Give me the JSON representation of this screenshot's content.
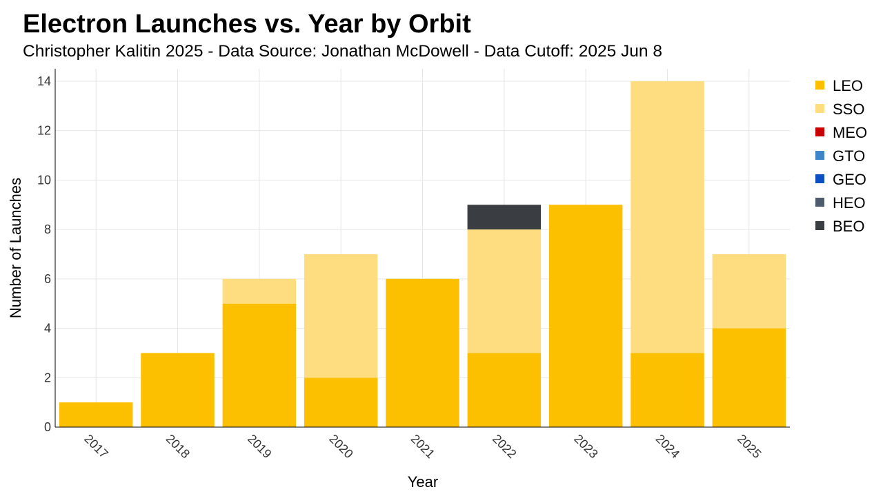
{
  "title": "Electron Launches vs. Year by Orbit",
  "subtitle": "Christopher Kalitin 2025 - Data Source: Jonathan McDowell - Data Cutoff: 2025 Jun 8",
  "colors": {
    "grid": "#e6e6e6",
    "axis": "#000000"
  },
  "chart_data": {
    "type": "bar",
    "stacked": true,
    "title": "Electron Launches vs. Year by Orbit",
    "subtitle": "Christopher Kalitin 2025 - Data Source: Jonathan McDowell - Data Cutoff: 2025 Jun 8",
    "xlabel": "Year",
    "ylabel": "Number of Launches",
    "categories": [
      "2017",
      "2018",
      "2019",
      "2020",
      "2021",
      "2022",
      "2023",
      "2024",
      "2025"
    ],
    "ylim": [
      0,
      14.5
    ],
    "yticks": [
      0,
      2,
      4,
      6,
      8,
      10,
      12,
      14
    ],
    "grid": true,
    "legend_position": "right",
    "series": [
      {
        "name": "LEO",
        "color": "#fdc000",
        "values": [
          1,
          3,
          5,
          2,
          6,
          3,
          9,
          3,
          4
        ]
      },
      {
        "name": "SSO",
        "color": "#fedd81",
        "values": [
          0,
          0,
          1,
          5,
          0,
          5,
          0,
          11,
          3
        ]
      },
      {
        "name": "MEO",
        "color": "#c90000",
        "values": [
          0,
          0,
          0,
          0,
          0,
          0,
          0,
          0,
          0
        ]
      },
      {
        "name": "GTO",
        "color": "#3f86c8",
        "values": [
          0,
          0,
          0,
          0,
          0,
          0,
          0,
          0,
          0
        ]
      },
      {
        "name": "GEO",
        "color": "#0b4fc2",
        "values": [
          0,
          0,
          0,
          0,
          0,
          0,
          0,
          0,
          0
        ]
      },
      {
        "name": "HEO",
        "color": "#4d5b6c",
        "values": [
          0,
          0,
          0,
          0,
          0,
          0,
          0,
          0,
          0
        ]
      },
      {
        "name": "BEO",
        "color": "#3a3e42",
        "values": [
          0,
          0,
          0,
          0,
          0,
          1,
          0,
          0,
          0
        ]
      }
    ]
  }
}
